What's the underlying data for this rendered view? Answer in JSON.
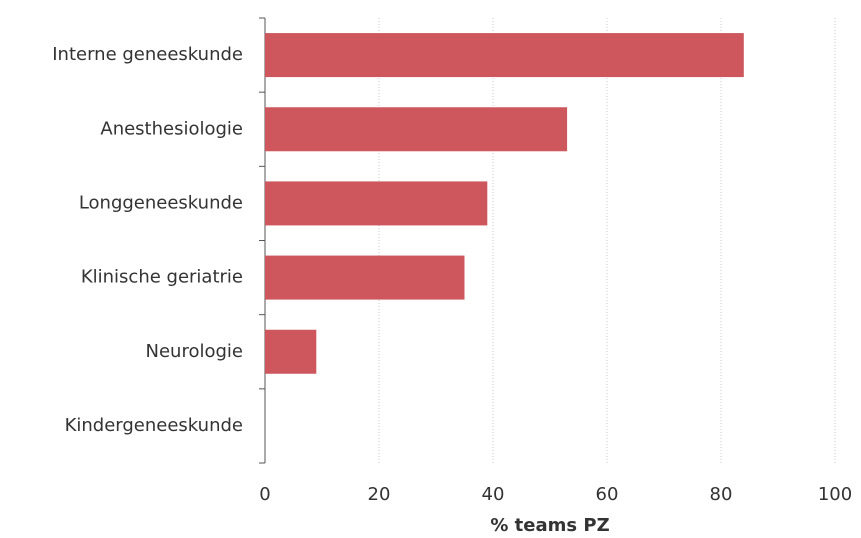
{
  "chart_data": {
    "type": "bar",
    "orientation": "horizontal",
    "categories": [
      "Interne geneeskunde",
      "Anesthesiologie",
      "Longgeneeskunde",
      "Klinische geriatrie",
      "Neurologie",
      "Kindergeneeskunde"
    ],
    "values": [
      84,
      53,
      39,
      35,
      9,
      0
    ],
    "color": "#cd575c",
    "x_label": "% teams PZ",
    "xlim": [
      0,
      100
    ],
    "xticks": [
      0,
      20,
      40,
      60,
      80,
      100
    ],
    "grid": true
  }
}
